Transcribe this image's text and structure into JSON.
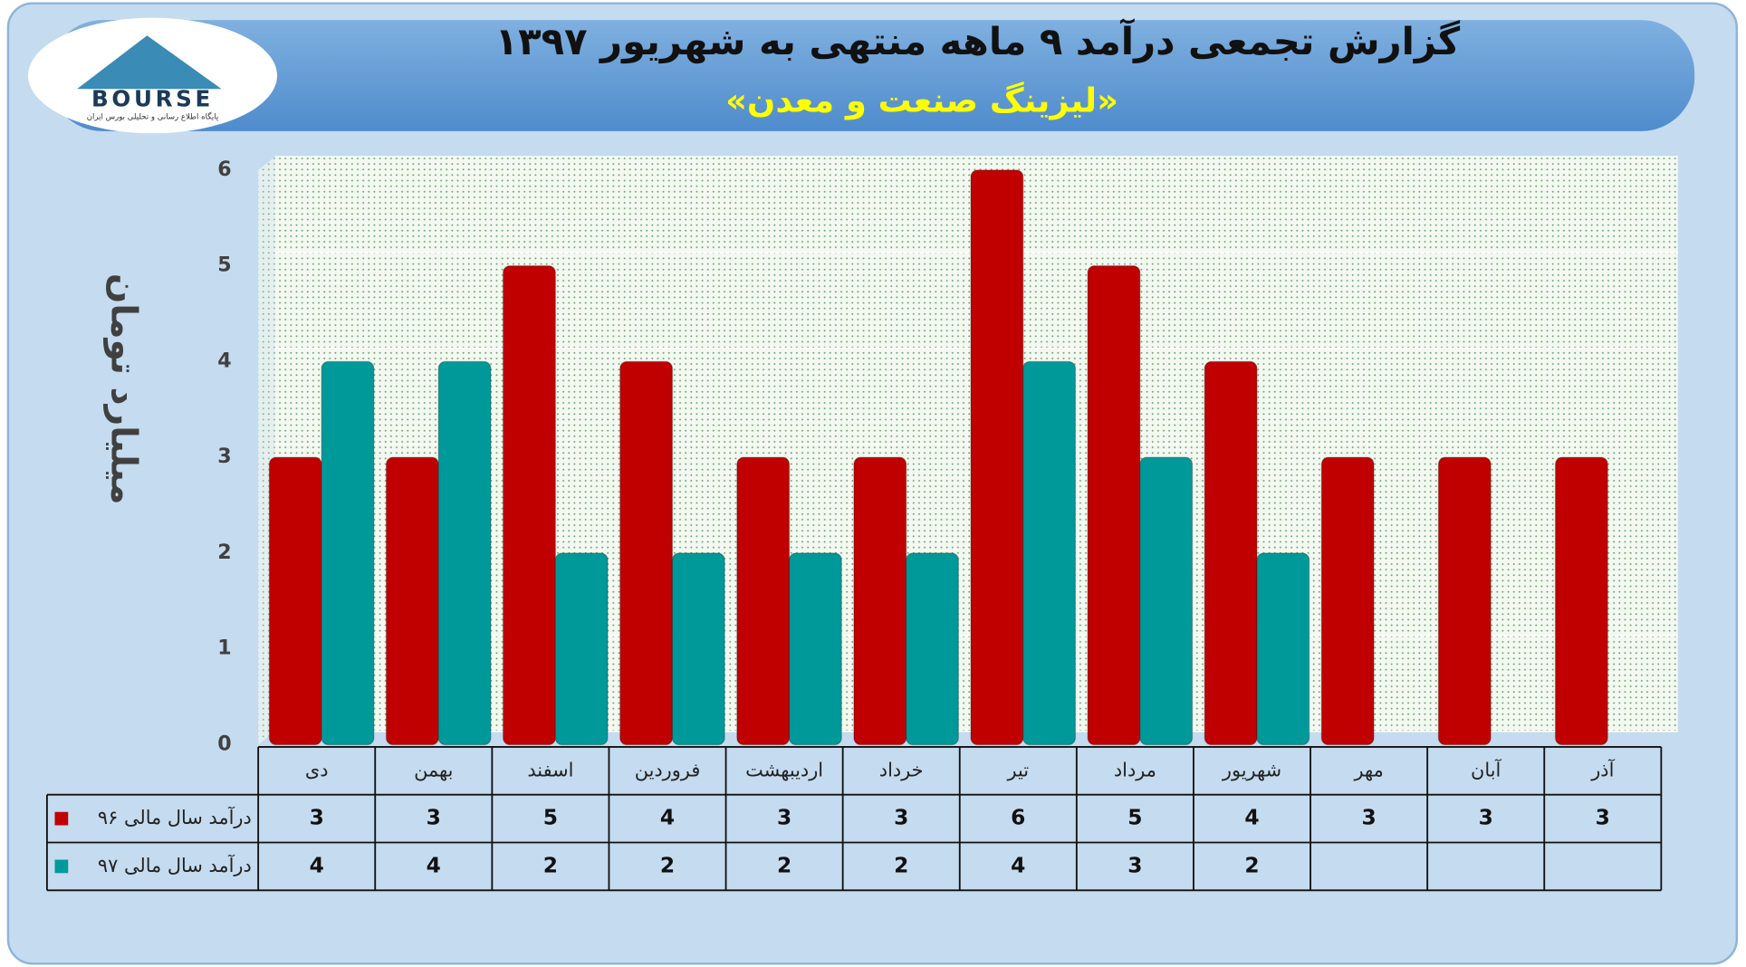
{
  "logo": {
    "name": "BOURSE",
    "tagline": "پایگاه اطلاع رسانی و تحلیلی بورس ایران"
  },
  "chart_data": {
    "type": "bar",
    "title": "گزارش تجمعی درآمد ۹ ماهه منتهی به شهریور ۱۳۹۷",
    "subtitle": "«لیزینگ صنعت و معدن»",
    "y_label": "میلیارد تومان",
    "categories": [
      "دی",
      "بهمن",
      "اسفند",
      "فروردین",
      "اردیبهشت",
      "خرداد",
      "تیر",
      "مرداد",
      "شهریور",
      "مهر",
      "آبان",
      "آذر"
    ],
    "series": [
      {
        "name": "درآمد سال مالی ۹۶",
        "color": "#c00000",
        "values": [
          3,
          3,
          5,
          4,
          3,
          3,
          6,
          5,
          4,
          3,
          3,
          3
        ]
      },
      {
        "name": "درآمد سال مالی ۹۷",
        "color": "#009999",
        "values": [
          4,
          4,
          2,
          2,
          2,
          2,
          4,
          3,
          2,
          null,
          null,
          null
        ]
      }
    ],
    "ylim": [
      0,
      6
    ],
    "yticks": [
      0,
      1,
      2,
      3,
      4,
      5,
      6
    ],
    "grid": true,
    "data_table": true
  }
}
